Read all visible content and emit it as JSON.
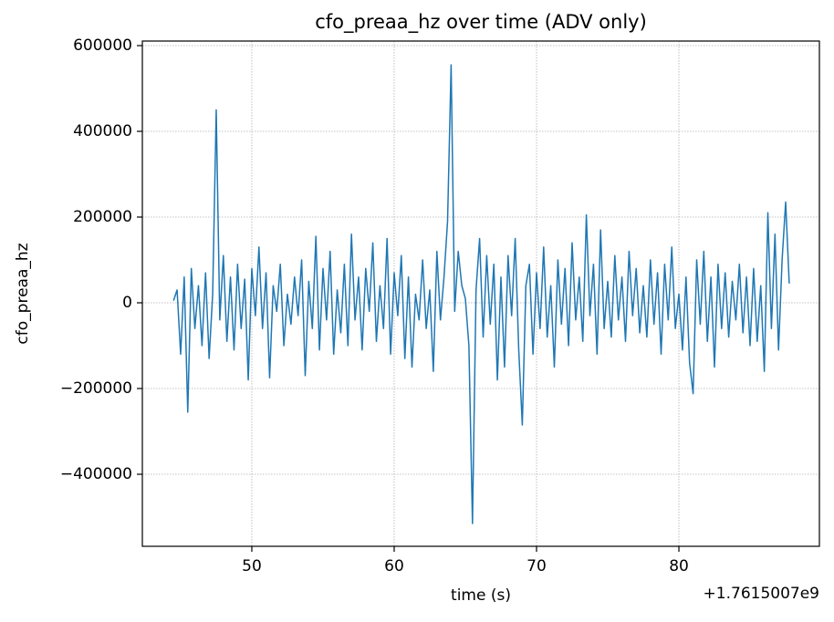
{
  "chart_data": {
    "type": "line",
    "title": "cfo_preaa_hz over time (ADV only)",
    "xlabel": "time (s)",
    "ylabel": "cfo_preaa_hz",
    "x_offset_label": "+1.7615007e9",
    "xlim": [
      42.31,
      89.87
    ],
    "xticks": [
      50,
      60,
      70,
      80
    ],
    "ylim": [
      -568085,
      610638
    ],
    "yticks": [
      {
        "value": -400000,
        "label": "−400000"
      },
      {
        "value": -200000,
        "label": "−200000"
      },
      0,
      200000,
      400000,
      600000
    ],
    "grid": true,
    "x": [
      44.5,
      44.75,
      45,
      45.25,
      45.5,
      45.75,
      46,
      46.25,
      46.5,
      46.75,
      47,
      47.25,
      47.5,
      47.75,
      48,
      48.25,
      48.5,
      48.75,
      49,
      49.25,
      49.5,
      49.75,
      50,
      50.25,
      50.5,
      50.75,
      51,
      51.25,
      51.5,
      51.75,
      52,
      52.25,
      52.5,
      52.75,
      53,
      53.25,
      53.5,
      53.75,
      54,
      54.25,
      54.5,
      54.75,
      55,
      55.25,
      55.5,
      55.75,
      56,
      56.25,
      56.5,
      56.75,
      57,
      57.25,
      57.5,
      57.75,
      58,
      58.25,
      58.5,
      58.75,
      59,
      59.25,
      59.5,
      59.75,
      60,
      60.25,
      60.5,
      60.75,
      61,
      61.25,
      61.5,
      61.75,
      62,
      62.25,
      62.5,
      62.75,
      63,
      63.25,
      63.5,
      63.75,
      64,
      64.25,
      64.5,
      64.75,
      65,
      65.25,
      65.5,
      65.75,
      66,
      66.25,
      66.5,
      66.75,
      67,
      67.25,
      67.5,
      67.75,
      68,
      68.25,
      68.5,
      68.75,
      69,
      69.25,
      69.5,
      69.75,
      70,
      70.25,
      70.5,
      70.75,
      71,
      71.25,
      71.5,
      71.75,
      72,
      72.25,
      72.5,
      72.75,
      73,
      73.25,
      73.5,
      73.75,
      74,
      74.25,
      74.5,
      74.75,
      75,
      75.25,
      75.5,
      75.75,
      76,
      76.25,
      76.5,
      76.75,
      77,
      77.25,
      77.5,
      77.75,
      78,
      78.25,
      78.5,
      78.75,
      79,
      79.25,
      79.5,
      79.75,
      80,
      80.25,
      80.5,
      80.75,
      81,
      81.25,
      81.5,
      81.75,
      82,
      82.25,
      82.5,
      82.75,
      83,
      83.25,
      83.5,
      83.75,
      84,
      84.25,
      84.5,
      84.75,
      85,
      85.25,
      85.5,
      85.75,
      86,
      86.25,
      86.5,
      86.75,
      87,
      87.25,
      87.5,
      87.75
    ],
    "series": [
      {
        "name": "cfo_preaa_hz",
        "color": "#1f77b4",
        "values": [
          5000,
          30000,
          -120000,
          60000,
          -255000,
          80000,
          -60000,
          40000,
          -100000,
          70000,
          -130000,
          20000,
          450000,
          -40000,
          110000,
          -90000,
          60000,
          -110000,
          90000,
          -60000,
          55000,
          -180000,
          80000,
          -30000,
          130000,
          -60000,
          70000,
          -175000,
          40000,
          -20000,
          90000,
          -100000,
          20000,
          -50000,
          60000,
          -30000,
          100000,
          -170000,
          50000,
          -60000,
          155000,
          -110000,
          80000,
          -40000,
          120000,
          -120000,
          30000,
          -70000,
          90000,
          -100000,
          160000,
          -40000,
          60000,
          -110000,
          80000,
          -20000,
          140000,
          -90000,
          40000,
          -60000,
          150000,
          -120000,
          70000,
          -30000,
          110000,
          -130000,
          60000,
          -150000,
          20000,
          -40000,
          100000,
          -60000,
          30000,
          -160000,
          120000,
          -40000,
          60000,
          190000,
          555000,
          -20000,
          120000,
          40000,
          10000,
          -100000,
          -515000,
          30000,
          150000,
          -80000,
          110000,
          -50000,
          90000,
          -180000,
          60000,
          -150000,
          110000,
          -30000,
          150000,
          -110000,
          -285000,
          40000,
          90000,
          -120000,
          70000,
          -60000,
          130000,
          -80000,
          40000,
          -150000,
          100000,
          -50000,
          80000,
          -100000,
          140000,
          -40000,
          60000,
          -90000,
          205000,
          -30000,
          90000,
          -120000,
          170000,
          -60000,
          50000,
          -80000,
          110000,
          -40000,
          60000,
          -90000,
          120000,
          -30000,
          80000,
          -70000,
          40000,
          -80000,
          100000,
          -50000,
          70000,
          -120000,
          90000,
          -40000,
          130000,
          -60000,
          20000,
          -110000,
          60000,
          -140000,
          -212000,
          100000,
          -50000,
          120000,
          -90000,
          60000,
          -150000,
          90000,
          -60000,
          70000,
          -80000,
          50000,
          -40000,
          90000,
          -70000,
          60000,
          -100000,
          80000,
          -90000,
          40000,
          -160000,
          210000,
          -60000,
          160000,
          -110000,
          100000,
          235000,
          45000
        ]
      }
    ]
  }
}
